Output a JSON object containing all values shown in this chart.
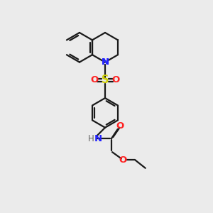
{
  "background_color": "#ebebeb",
  "bond_color": "#1a1a1a",
  "atom_colors": {
    "N": "#2020ff",
    "O": "#ff2020",
    "S": "#cccc00",
    "H": "#606060"
  },
  "figsize": [
    3.0,
    3.0
  ],
  "dpi": 100,
  "lw": 1.6,
  "fs": 8.5
}
